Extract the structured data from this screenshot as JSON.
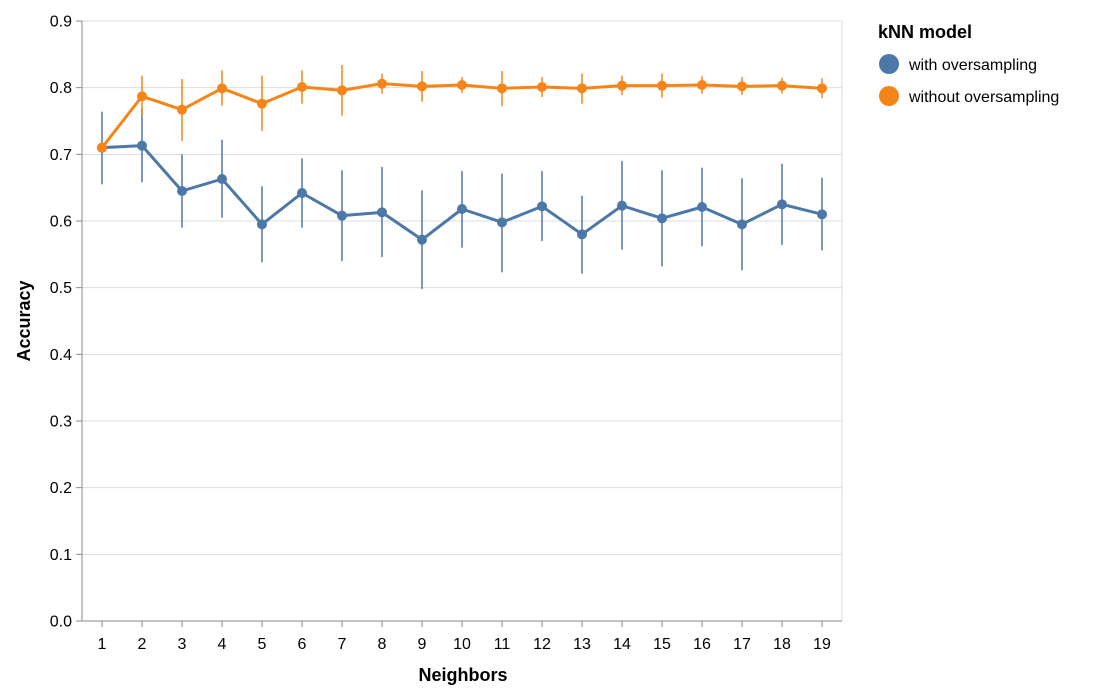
{
  "chart_data": {
    "type": "line",
    "xlabel": "Neighbors",
    "ylabel": "Accuracy",
    "x": [
      1,
      2,
      3,
      4,
      5,
      6,
      7,
      8,
      9,
      10,
      11,
      12,
      13,
      14,
      15,
      16,
      17,
      18,
      19
    ],
    "ylim": [
      0,
      0.9
    ],
    "yticks": [
      "0.0",
      "0.1",
      "0.2",
      "0.3",
      "0.4",
      "0.5",
      "0.6",
      "0.7",
      "0.8",
      "0.9"
    ],
    "grid": true,
    "legend": {
      "title": "kNN model",
      "placement": "right"
    },
    "series": [
      {
        "name": "with oversampling",
        "color": "#4c78a8",
        "values": [
          0.71,
          0.713,
          0.645,
          0.663,
          0.595,
          0.642,
          0.608,
          0.613,
          0.572,
          0.618,
          0.598,
          0.622,
          0.58,
          0.623,
          0.604,
          0.621,
          0.595,
          0.625,
          0.61
        ],
        "error_low": [
          0.655,
          0.658,
          0.59,
          0.605,
          0.538,
          0.59,
          0.54,
          0.546,
          0.498,
          0.56,
          0.523,
          0.57,
          0.521,
          0.557,
          0.532,
          0.562,
          0.526,
          0.564,
          0.556
        ],
        "error_high": [
          0.764,
          0.77,
          0.7,
          0.722,
          0.652,
          0.694,
          0.676,
          0.681,
          0.646,
          0.675,
          0.671,
          0.675,
          0.638,
          0.69,
          0.676,
          0.68,
          0.664,
          0.686,
          0.665
        ]
      },
      {
        "name": "without oversampling",
        "color": "#f58518",
        "values": [
          0.71,
          0.787,
          0.767,
          0.799,
          0.776,
          0.801,
          0.796,
          0.806,
          0.802,
          0.804,
          0.799,
          0.801,
          0.799,
          0.803,
          0.803,
          0.804,
          0.802,
          0.803,
          0.799
        ],
        "error_low": [
          0.71,
          0.757,
          0.72,
          0.773,
          0.735,
          0.776,
          0.758,
          0.791,
          0.779,
          0.792,
          0.772,
          0.786,
          0.776,
          0.789,
          0.785,
          0.791,
          0.789,
          0.791,
          0.784
        ],
        "error_high": [
          0.71,
          0.818,
          0.813,
          0.826,
          0.818,
          0.826,
          0.834,
          0.821,
          0.825,
          0.816,
          0.825,
          0.816,
          0.821,
          0.818,
          0.821,
          0.817,
          0.816,
          0.815,
          0.814
        ]
      }
    ]
  }
}
